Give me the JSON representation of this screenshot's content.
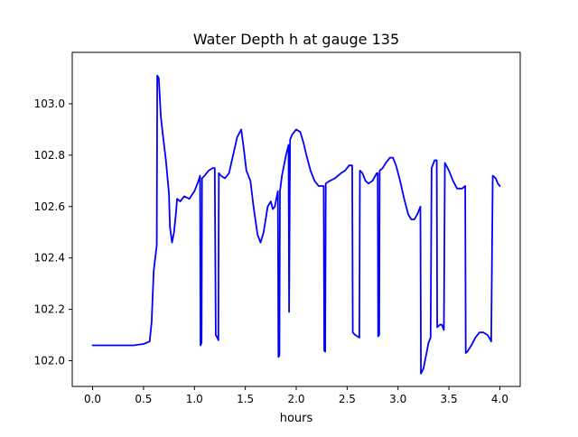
{
  "chart_data": {
    "type": "line",
    "title": "Water Depth h at gauge 135",
    "xlabel": "hours",
    "ylabel": "",
    "xlim": [
      -0.2,
      4.2
    ],
    "ylim": [
      101.9,
      103.2
    ],
    "xticks": [
      0.0,
      0.5,
      1.0,
      1.5,
      2.0,
      2.5,
      3.0,
      3.5,
      4.0
    ],
    "xtick_labels": [
      "0.0",
      "0.5",
      "1.0",
      "1.5",
      "2.0",
      "2.5",
      "3.0",
      "3.5",
      "4.0"
    ],
    "yticks": [
      102.0,
      102.2,
      102.4,
      102.6,
      102.8,
      103.0
    ],
    "ytick_labels": [
      "102.0",
      "102.2",
      "102.4",
      "102.6",
      "102.8",
      "103.0"
    ],
    "grid": false,
    "series": [
      {
        "color": "#0000ff",
        "points": [
          [
            0.0,
            102.06
          ],
          [
            0.4,
            102.06
          ],
          [
            0.5,
            102.065
          ],
          [
            0.56,
            102.075
          ],
          [
            0.58,
            102.15
          ],
          [
            0.6,
            102.35
          ],
          [
            0.63,
            102.45
          ],
          [
            0.635,
            103.11
          ],
          [
            0.65,
            103.1
          ],
          [
            0.67,
            102.95
          ],
          [
            0.69,
            102.88
          ],
          [
            0.72,
            102.78
          ],
          [
            0.75,
            102.65
          ],
          [
            0.76,
            102.52
          ],
          [
            0.78,
            102.46
          ],
          [
            0.8,
            102.5
          ],
          [
            0.82,
            102.58
          ],
          [
            0.83,
            102.63
          ],
          [
            0.86,
            102.62
          ],
          [
            0.9,
            102.64
          ],
          [
            0.95,
            102.63
          ],
          [
            1.0,
            102.66
          ],
          [
            1.04,
            102.7
          ],
          [
            1.055,
            102.72
          ],
          [
            1.06,
            102.06
          ],
          [
            1.07,
            102.07
          ],
          [
            1.075,
            102.71
          ],
          [
            1.1,
            102.72
          ],
          [
            1.14,
            102.74
          ],
          [
            1.18,
            102.75
          ],
          [
            1.2,
            102.75
          ],
          [
            1.21,
            102.1
          ],
          [
            1.225,
            102.09
          ],
          [
            1.235,
            102.08
          ],
          [
            1.24,
            102.73
          ],
          [
            1.26,
            102.72
          ],
          [
            1.3,
            102.71
          ],
          [
            1.34,
            102.73
          ],
          [
            1.38,
            102.8
          ],
          [
            1.42,
            102.87
          ],
          [
            1.46,
            102.9
          ],
          [
            1.48,
            102.84
          ],
          [
            1.51,
            102.74
          ],
          [
            1.55,
            102.7
          ],
          [
            1.58,
            102.6
          ],
          [
            1.62,
            102.49
          ],
          [
            1.65,
            102.46
          ],
          [
            1.68,
            102.5
          ],
          [
            1.72,
            102.6
          ],
          [
            1.75,
            102.62
          ],
          [
            1.77,
            102.59
          ],
          [
            1.79,
            102.6
          ],
          [
            1.82,
            102.66
          ],
          [
            1.825,
            102.015
          ],
          [
            1.835,
            102.02
          ],
          [
            1.84,
            102.66
          ],
          [
            1.86,
            102.72
          ],
          [
            1.9,
            102.8
          ],
          [
            1.925,
            102.84
          ],
          [
            1.93,
            102.19
          ],
          [
            1.94,
            102.86
          ],
          [
            1.96,
            102.88
          ],
          [
            2.0,
            102.9
          ],
          [
            2.04,
            102.89
          ],
          [
            2.07,
            102.85
          ],
          [
            2.1,
            102.8
          ],
          [
            2.14,
            102.74
          ],
          [
            2.18,
            102.7
          ],
          [
            2.22,
            102.68
          ],
          [
            2.27,
            102.68
          ],
          [
            2.275,
            102.04
          ],
          [
            2.285,
            102.035
          ],
          [
            2.29,
            102.69
          ],
          [
            2.33,
            102.7
          ],
          [
            2.38,
            102.71
          ],
          [
            2.44,
            102.73
          ],
          [
            2.48,
            102.74
          ],
          [
            2.52,
            102.76
          ],
          [
            2.55,
            102.76
          ],
          [
            2.555,
            102.11
          ],
          [
            2.58,
            102.1
          ],
          [
            2.62,
            102.09
          ],
          [
            2.625,
            102.74
          ],
          [
            2.65,
            102.73
          ],
          [
            2.68,
            102.7
          ],
          [
            2.71,
            102.69
          ],
          [
            2.75,
            102.7
          ],
          [
            2.79,
            102.73
          ],
          [
            2.8,
            102.73
          ],
          [
            2.805,
            102.095
          ],
          [
            2.815,
            102.1
          ],
          [
            2.82,
            102.74
          ],
          [
            2.85,
            102.75
          ],
          [
            2.88,
            102.77
          ],
          [
            2.92,
            102.79
          ],
          [
            2.95,
            102.79
          ],
          [
            2.98,
            102.76
          ],
          [
            3.02,
            102.7
          ],
          [
            3.06,
            102.63
          ],
          [
            3.1,
            102.57
          ],
          [
            3.13,
            102.55
          ],
          [
            3.16,
            102.55
          ],
          [
            3.19,
            102.57
          ],
          [
            3.22,
            102.6
          ],
          [
            3.225,
            101.95
          ],
          [
            3.25,
            101.97
          ],
          [
            3.28,
            102.03
          ],
          [
            3.3,
            102.07
          ],
          [
            3.32,
            102.09
          ],
          [
            3.33,
            102.75
          ],
          [
            3.36,
            102.78
          ],
          [
            3.38,
            102.78
          ],
          [
            3.385,
            102.13
          ],
          [
            3.41,
            102.14
          ],
          [
            3.43,
            102.14
          ],
          [
            3.45,
            102.12
          ],
          [
            3.46,
            102.77
          ],
          [
            3.5,
            102.74
          ],
          [
            3.54,
            102.7
          ],
          [
            3.58,
            102.67
          ],
          [
            3.63,
            102.67
          ],
          [
            3.66,
            102.68
          ],
          [
            3.665,
            102.03
          ],
          [
            3.68,
            102.035
          ],
          [
            3.72,
            102.06
          ],
          [
            3.76,
            102.09
          ],
          [
            3.8,
            102.11
          ],
          [
            3.84,
            102.11
          ],
          [
            3.88,
            102.1
          ],
          [
            3.91,
            102.08
          ],
          [
            3.915,
            102.075
          ],
          [
            3.93,
            102.72
          ],
          [
            3.96,
            102.71
          ],
          [
            3.98,
            102.69
          ],
          [
            4.0,
            102.68
          ]
        ]
      }
    ]
  }
}
